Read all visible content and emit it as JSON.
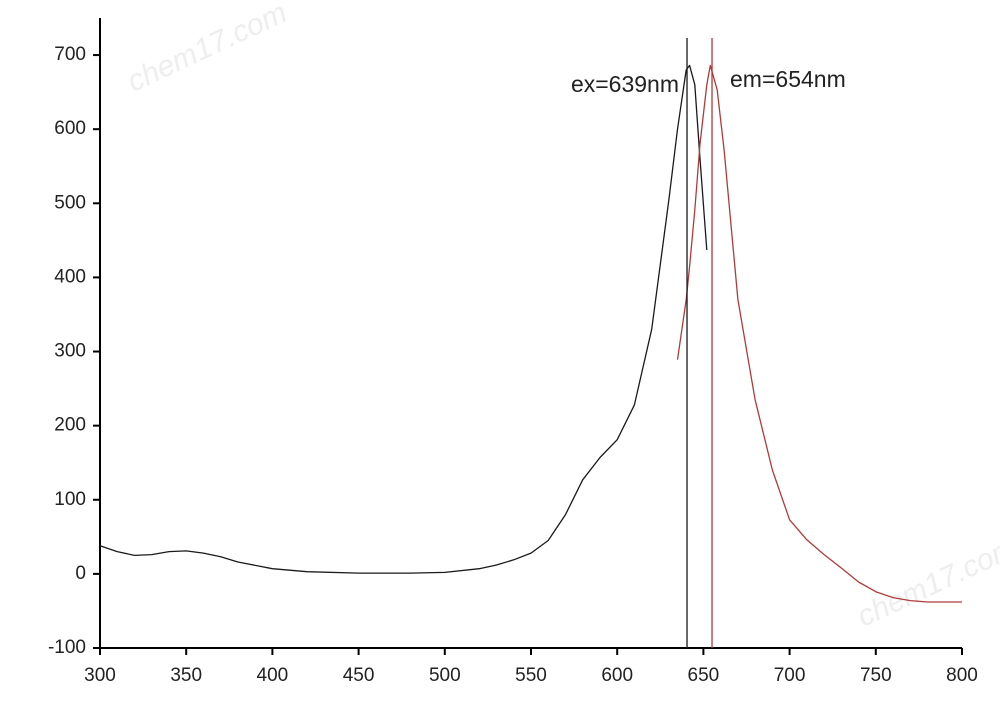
{
  "chart_data": {
    "type": "line",
    "x": [
      300,
      310,
      320,
      330,
      340,
      350,
      360,
      370,
      380,
      400,
      420,
      450,
      480,
      500,
      520,
      530,
      540,
      550,
      560,
      570,
      580,
      590,
      600,
      610,
      620,
      630,
      635,
      640,
      642,
      645,
      648,
      652,
      654,
      658,
      662,
      670,
      680,
      690,
      700,
      710,
      720,
      730,
      740,
      750,
      760,
      770,
      780,
      800
    ],
    "series": [
      {
        "name": "ex",
        "color": "#1a1a1a",
        "values": [
          38,
          30,
          25,
          26,
          30,
          31,
          28,
          23,
          16,
          7,
          3,
          1,
          1,
          2,
          7,
          12,
          19,
          28,
          45,
          80,
          127,
          157,
          181,
          228,
          330,
          505,
          600,
          680,
          686,
          660,
          560,
          437,
          null,
          null,
          null,
          null,
          null,
          null,
          null,
          null,
          null,
          null,
          null,
          null,
          null,
          null,
          null,
          null
        ]
      },
      {
        "name": "em",
        "color": "#b03a3a",
        "values": [
          null,
          null,
          null,
          null,
          null,
          null,
          null,
          null,
          null,
          null,
          null,
          null,
          null,
          null,
          null,
          null,
          null,
          null,
          null,
          null,
          null,
          null,
          null,
          null,
          null,
          null,
          289,
          370,
          415,
          491,
          580,
          660,
          686,
          653,
          572,
          370,
          235,
          140,
          73,
          46,
          26,
          8,
          -11,
          -24,
          -32,
          -36,
          -38,
          -38
        ]
      }
    ],
    "vlines": [
      {
        "x": 640.5,
        "color": "#1a1a1a",
        "label": "ex=639nm"
      },
      {
        "x": 655,
        "color": "#b03a3a",
        "label": "em=654nm"
      }
    ],
    "xlim": [
      300,
      800
    ],
    "ylim": [
      -100,
      750
    ],
    "xticks": [
      300,
      350,
      400,
      450,
      500,
      550,
      600,
      650,
      700,
      750,
      800
    ],
    "yticks": [
      -100,
      0,
      100,
      200,
      300,
      400,
      500,
      600,
      700
    ],
    "watermark": "chem17.com"
  }
}
